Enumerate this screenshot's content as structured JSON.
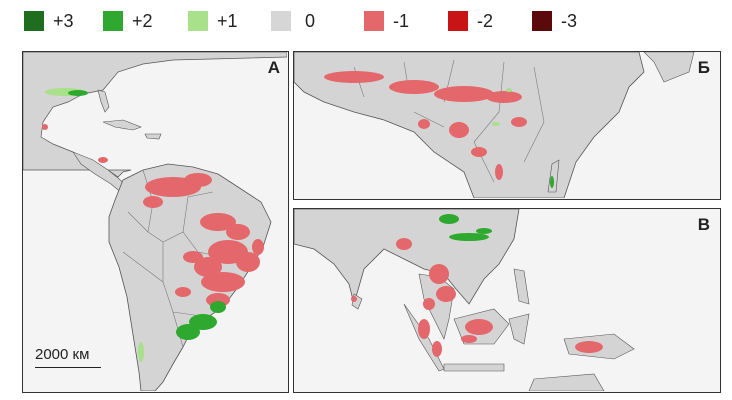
{
  "legend": {
    "items": [
      {
        "label": "+3",
        "color": "#1f6e1f"
      },
      {
        "label": "+2",
        "color": "#2ea82e"
      },
      {
        "label": "+1",
        "color": "#a9e08a"
      },
      {
        "label": "0",
        "color": "#d6d6d6"
      },
      {
        "label": "-1",
        "color": "#e4676b"
      },
      {
        "label": "-2",
        "color": "#c81414"
      },
      {
        "label": "-3",
        "color": "#5a0a0a"
      }
    ]
  },
  "panels": {
    "a": {
      "label": "А"
    },
    "b": {
      "label": "Б"
    },
    "c": {
      "label": "В"
    }
  },
  "scale": {
    "label": "2000 км"
  },
  "colors": {
    "land": "#d4d4d4",
    "ocean": "#f4f4f4",
    "border": "#7a7a7a",
    "coast": "#555555",
    "loss": "#e4676b",
    "gain": "#2ea82e"
  }
}
